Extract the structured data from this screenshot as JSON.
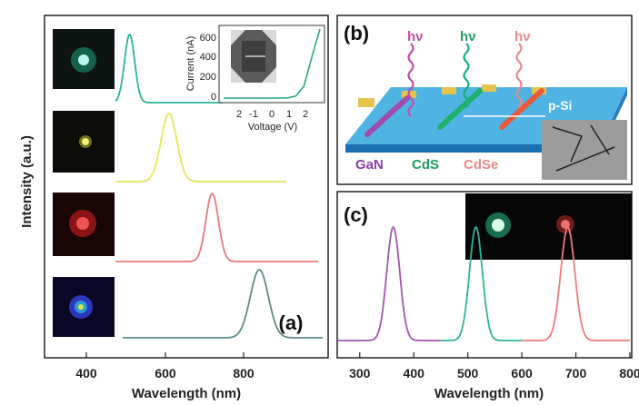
{
  "panels": {
    "a": {
      "label": "(a)",
      "ylabel": "Intensity (a.u.)",
      "xlabel": "Wavelength (nm)",
      "xticks": [
        "400",
        "600",
        "800"
      ],
      "inset": {
        "ylabel": "Current (nA)",
        "xlabel": "Voltage (V)",
        "yticks": [
          "0",
          "200",
          "400",
          "600"
        ],
        "xticks": [
          "2",
          "-1",
          "0",
          "1",
          "2"
        ]
      }
    },
    "b": {
      "label": "(b)",
      "photon_label": "hν",
      "substrate_label": "p-Si",
      "materials": [
        "GaN",
        "CdS",
        "CdSe"
      ]
    },
    "c": {
      "label": "(c)",
      "xlabel": "Wavelength (nm)",
      "xticks": [
        "300",
        "400",
        "500",
        "600",
        "700",
        "800"
      ]
    }
  },
  "chart_data": [
    {
      "type": "line",
      "panel": "a",
      "xlabel": "Wavelength (nm)",
      "ylabel": "Intensity (a.u.)",
      "xlim": [
        300,
        950
      ],
      "series": [
        {
          "color": "#29b39a",
          "peak": 510,
          "width": 13,
          "offset": 3
        },
        {
          "color": "#e6e65a",
          "peak": 610,
          "width": 20,
          "offset": 2
        },
        {
          "color": "#f07878",
          "peak": 720,
          "width": 16,
          "offset": 1
        },
        {
          "color": "#5f8a88",
          "peak": 840,
          "width": 23,
          "offset": 0
        }
      ]
    },
    {
      "type": "line",
      "panel": "a-inset",
      "xlabel": "Voltage (V)",
      "ylabel": "Current (nA)",
      "xlim": [
        -3,
        3
      ],
      "ylim": [
        0,
        700
      ],
      "series": [
        {
          "color": "#2aa58a",
          "x": [
            -3,
            -2,
            -1,
            0,
            1,
            1.5,
            2,
            2.5,
            3
          ],
          "y": [
            0,
            0,
            0,
            0,
            2,
            20,
            120,
            420,
            700
          ]
        }
      ]
    },
    {
      "type": "line",
      "panel": "c",
      "xlabel": "Wavelength (nm)",
      "xlim": [
        260,
        800
      ],
      "series": [
        {
          "color": "#a255b0",
          "peak": 362,
          "width": 12,
          "range": [
            260,
            450
          ]
        },
        {
          "color": "#2cb39a",
          "peak": 515,
          "width": 12,
          "range": [
            450,
            600
          ]
        },
        {
          "color": "#f07a7a",
          "peak": 685,
          "width": 13,
          "range": [
            600,
            800
          ]
        }
      ]
    }
  ],
  "colors": {
    "green": "#2cb39a",
    "yellow": "#e6e65a",
    "red": "#f07878",
    "purple": "#a255b0",
    "dark": "#5f8a88"
  }
}
